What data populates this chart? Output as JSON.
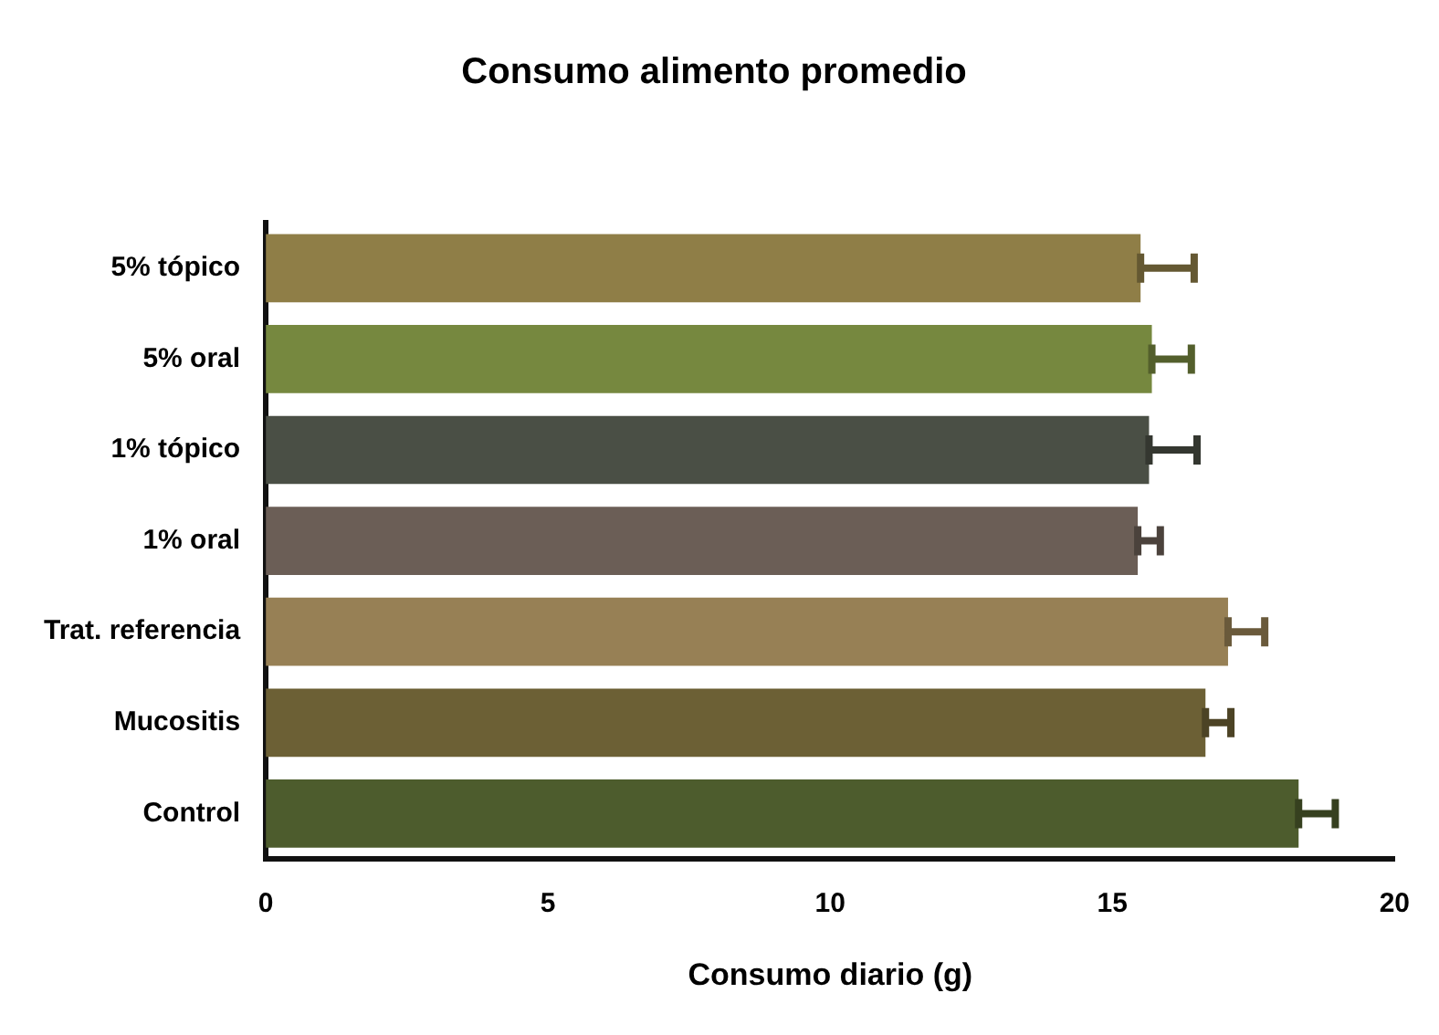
{
  "chart_data": {
    "type": "bar",
    "orientation": "horizontal",
    "title": "Consumo alimento promedio",
    "xlabel": "Consumo diario (g)",
    "categories": [
      "5% tópico",
      "5% oral",
      "1% tópico",
      "1% oral",
      "Trat. referencia",
      "Mucositis",
      "Control"
    ],
    "values": [
      15.5,
      15.7,
      15.65,
      15.45,
      17.05,
      16.65,
      18.3
    ],
    "errors": [
      [
        15.5,
        16.45
      ],
      [
        15.7,
        16.4
      ],
      [
        15.65,
        16.5
      ],
      [
        15.45,
        15.85
      ],
      [
        17.05,
        17.7
      ],
      [
        16.65,
        17.1
      ],
      [
        18.3,
        18.95
      ]
    ],
    "colors": [
      "#8f7e47",
      "#76883f",
      "#4a4f45",
      "#6b5e56",
      "#978055",
      "#6c6035",
      "#4d5c2d"
    ],
    "xlim": [
      0,
      20
    ],
    "xticks": [
      0,
      5,
      10,
      15,
      20
    ],
    "grid": false,
    "legend": false
  }
}
